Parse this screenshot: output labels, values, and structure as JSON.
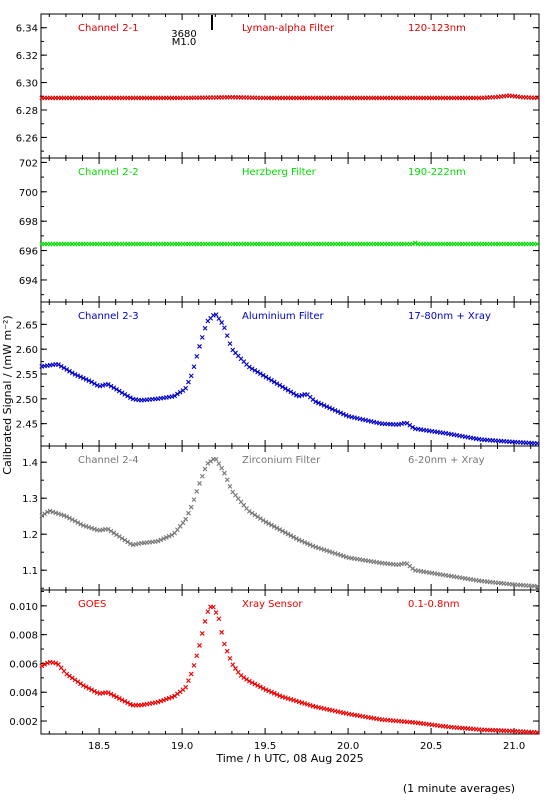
{
  "chart_data": {
    "type": "scatter",
    "xlabel": "Time / h UTC, 08 Aug 2025",
    "ylabel": "Calibrated Signal / (mW m⁻²)",
    "footnote": "(1 minute averages)",
    "xlim": [
      18.15,
      21.15
    ],
    "x_ticks": [
      18.5,
      19.0,
      19.5,
      20.0,
      20.5,
      21.0
    ],
    "x_tick_labels": [
      "18.5",
      "19.0",
      "19.5",
      "20.0",
      "20.5",
      "21.0"
    ],
    "event": {
      "x": 19.18,
      "label_top": "3680",
      "label_bottom": "M1.0"
    },
    "panels": [
      {
        "labels": [
          "Channel 2-1",
          "Lyman-alpha Filter",
          "120-123nm"
        ],
        "color": "#dd0000",
        "ylim": [
          6.245,
          6.35
        ],
        "y_ticks": [
          6.26,
          6.28,
          6.3,
          6.32,
          6.34
        ],
        "y_tick_labels": [
          "6.26",
          "6.28",
          "6.30",
          "6.32",
          "6.34"
        ],
        "x": [
          18.15,
          19.0,
          19.3,
          19.5,
          20.0,
          20.5,
          20.8,
          20.9,
          20.97,
          21.05,
          21.15
        ],
        "y": [
          6.2888,
          6.2888,
          6.2893,
          6.2888,
          6.2888,
          6.2888,
          6.2888,
          6.2895,
          6.2905,
          6.2893,
          6.2888
        ]
      },
      {
        "labels": [
          "Channel 2-2",
          "Herzberg Filter",
          "190-222nm"
        ],
        "color": "#00dd00",
        "ylim": [
          692.5,
          702.3
        ],
        "y_ticks": [
          694,
          696,
          698,
          700,
          702
        ],
        "y_tick_labels": [
          "694",
          "696",
          "698",
          "700",
          "702"
        ],
        "x": [
          18.15,
          19.0,
          19.9,
          20.4,
          20.41,
          20.42,
          21.15
        ],
        "y": [
          696.45,
          696.45,
          696.45,
          696.45,
          696.6,
          696.45,
          696.45
        ]
      },
      {
        "labels": [
          "Channel 2-3",
          "Aluminium Filter",
          "17-80nm + Xray"
        ],
        "color": "#0000cc",
        "ylim": [
          2.405,
          2.695
        ],
        "y_ticks": [
          2.45,
          2.5,
          2.55,
          2.6,
          2.65
        ],
        "y_tick_labels": [
          "2.45",
          "2.50",
          "2.55",
          "2.60",
          "2.65"
        ],
        "x": [
          18.15,
          18.25,
          18.35,
          18.45,
          18.5,
          18.55,
          18.6,
          18.7,
          18.75,
          18.85,
          18.95,
          19.02,
          19.06,
          19.1,
          19.15,
          19.2,
          19.25,
          19.3,
          19.4,
          19.5,
          19.6,
          19.7,
          19.75,
          19.8,
          19.9,
          20.0,
          20.2,
          20.3,
          20.35,
          20.4,
          20.6,
          20.8,
          21.0,
          21.15
        ],
        "y": [
          2.565,
          2.57,
          2.55,
          2.535,
          2.525,
          2.53,
          2.52,
          2.5,
          2.497,
          2.5,
          2.505,
          2.52,
          2.55,
          2.6,
          2.655,
          2.672,
          2.648,
          2.6,
          2.565,
          2.545,
          2.525,
          2.505,
          2.51,
          2.495,
          2.48,
          2.465,
          2.45,
          2.448,
          2.452,
          2.44,
          2.43,
          2.418,
          2.413,
          2.41
        ]
      },
      {
        "labels": [
          "Channel 2-4",
          "Zirconium Filter",
          "6-20nm + Xray"
        ],
        "color": "#777777",
        "ylim": [
          1.045,
          1.445
        ],
        "y_ticks": [
          1.1,
          1.2,
          1.3,
          1.4
        ],
        "y_tick_labels": [
          "1.1",
          "1.2",
          "1.3",
          "1.4"
        ],
        "x": [
          18.15,
          18.2,
          18.3,
          18.4,
          18.5,
          18.55,
          18.6,
          18.7,
          18.75,
          18.85,
          18.95,
          19.02,
          19.06,
          19.1,
          19.15,
          19.2,
          19.25,
          19.3,
          19.4,
          19.5,
          19.6,
          19.7,
          19.8,
          19.9,
          20.0,
          20.2,
          20.3,
          20.35,
          20.4,
          20.6,
          20.8,
          21.0,
          21.15
        ],
        "y": [
          1.25,
          1.265,
          1.25,
          1.225,
          1.21,
          1.215,
          1.2,
          1.17,
          1.175,
          1.18,
          1.2,
          1.24,
          1.28,
          1.335,
          1.395,
          1.412,
          1.375,
          1.32,
          1.265,
          1.235,
          1.21,
          1.185,
          1.165,
          1.15,
          1.135,
          1.12,
          1.115,
          1.12,
          1.1,
          1.085,
          1.07,
          1.06,
          1.055
        ]
      },
      {
        "labels": [
          "GOES",
          "Xray Sensor",
          "0.1-0.8nm"
        ],
        "color": "#ee0000",
        "ylim": [
          0.0011,
          0.0111
        ],
        "y_ticks": [
          0.002,
          0.004,
          0.006,
          0.008,
          0.01
        ],
        "y_tick_labels": [
          "0.002",
          "0.004",
          "0.006",
          "0.008",
          "0.010"
        ],
        "x": [
          18.15,
          18.2,
          18.25,
          18.3,
          18.4,
          18.5,
          18.55,
          18.6,
          18.7,
          18.75,
          18.85,
          18.95,
          19.02,
          19.06,
          19.1,
          19.15,
          19.18,
          19.22,
          19.25,
          19.3,
          19.35,
          19.4,
          19.5,
          19.6,
          19.8,
          20.0,
          20.2,
          20.4,
          20.6,
          20.8,
          21.0,
          21.15
        ],
        "y": [
          0.0058,
          0.0061,
          0.006,
          0.0053,
          0.0045,
          0.0039,
          0.004,
          0.0037,
          0.0031,
          0.0031,
          0.0033,
          0.0037,
          0.0043,
          0.0054,
          0.007,
          0.0095,
          0.0101,
          0.0092,
          0.0075,
          0.006,
          0.0052,
          0.0048,
          0.0042,
          0.0037,
          0.003,
          0.0025,
          0.0021,
          0.0019,
          0.0016,
          0.0014,
          0.0013,
          0.0012
        ]
      }
    ]
  }
}
